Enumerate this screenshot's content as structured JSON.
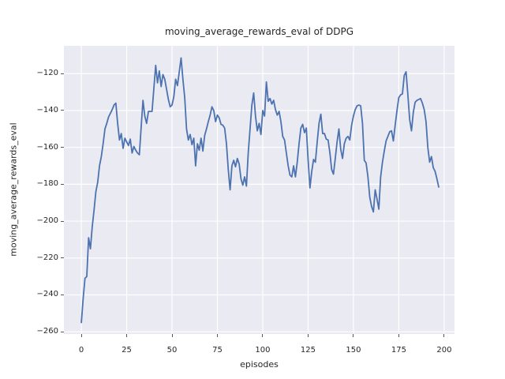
{
  "figure": {
    "background": "#ffffff"
  },
  "chart_data": {
    "type": "line",
    "title": "moving_average_rewards_eval of DDPG",
    "xlabel": "episodes",
    "ylabel": "moving_average_rewards_eval",
    "grid": true,
    "legend": null,
    "plot_bg": "#eaeaf2",
    "grid_color": "#ffffff",
    "text_color": "#262626",
    "xlim": [
      -9.6,
      205.7
    ],
    "ylim": [
      -261.2,
      -104.9
    ],
    "x_ticks": [
      0,
      25,
      50,
      75,
      100,
      125,
      150,
      175,
      200
    ],
    "y_ticks": [
      -120,
      -140,
      -160,
      -180,
      -200,
      -220,
      -240,
      -260
    ],
    "x_tick_labels": [
      "0",
      "25",
      "50",
      "75",
      "100",
      "125",
      "150",
      "175",
      "200"
    ],
    "y_tick_labels": [
      "−120",
      "−140",
      "−160",
      "−180",
      "−200",
      "−220",
      "−240",
      "−260"
    ],
    "x_start": 0,
    "x_step": 1,
    "series": [
      {
        "name": "moving_average_rewards_eval",
        "color": "#4c72b0",
        "values": [
          -255,
          -242,
          -231,
          -230,
          -209,
          -215,
          -203,
          -194,
          -184,
          -179,
          -170,
          -165,
          -158,
          -150,
          -147,
          -143.5,
          -141.5,
          -139.5,
          -137,
          -136,
          -147,
          -156,
          -152.5,
          -160.5,
          -155,
          -157,
          -159,
          -155.5,
          -163,
          -159.5,
          -161.5,
          -163,
          -164,
          -149,
          -134.5,
          -143,
          -147,
          -140.5,
          -140.5,
          -140.5,
          -128,
          -115.5,
          -125,
          -118.5,
          -127,
          -120.5,
          -123,
          -128.5,
          -134,
          -138,
          -137,
          -132.5,
          -123,
          -126.5,
          -119,
          -111.5,
          -123,
          -133,
          -150,
          -156,
          -153,
          -158.5,
          -155,
          -170,
          -158,
          -161.5,
          -155,
          -162,
          -153.5,
          -150,
          -146,
          -142.5,
          -138,
          -140,
          -146,
          -142.5,
          -144,
          -147.5,
          -148,
          -149.5,
          -158,
          -172,
          -183,
          -170,
          -167,
          -170.5,
          -166,
          -169,
          -177,
          -180.5,
          -176,
          -181,
          -163,
          -150,
          -137,
          -130.5,
          -143,
          -151,
          -147,
          -153,
          -140,
          -143,
          -124.5,
          -135,
          -133.5,
          -136.5,
          -134.5,
          -139.5,
          -142.5,
          -140.5,
          -146,
          -154,
          -156,
          -163,
          -170,
          -175,
          -176,
          -170,
          -176,
          -168,
          -158,
          -149.5,
          -147.5,
          -152,
          -149.5,
          -167,
          -182,
          -173,
          -166.5,
          -168,
          -157,
          -147,
          -142,
          -152.5,
          -152.5,
          -155.5,
          -156,
          -163,
          -172,
          -174.5,
          -166,
          -157,
          -150,
          -161,
          -166,
          -158,
          -155,
          -154,
          -156,
          -148,
          -143,
          -139.5,
          -137.5,
          -137,
          -137.5,
          -147,
          -167,
          -168.5,
          -176,
          -187,
          -192,
          -195,
          -183,
          -188,
          -193.5,
          -176,
          -168,
          -162,
          -156.5,
          -154,
          -151.5,
          -151,
          -156.5,
          -148,
          -140,
          -133,
          -131.5,
          -131,
          -121,
          -119,
          -131.5,
          -145,
          -151,
          -141,
          -135.5,
          -134.5,
          -134,
          -133.5,
          -136,
          -139.5,
          -146,
          -160,
          -168,
          -165,
          -171,
          -173,
          -177,
          -181.5
        ]
      }
    ]
  }
}
